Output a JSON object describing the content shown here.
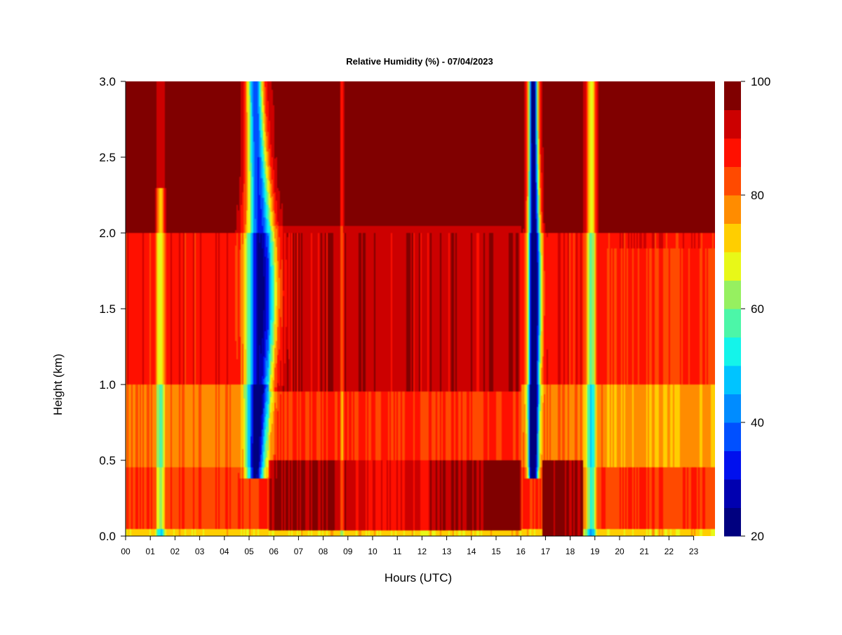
{
  "chart_data": {
    "type": "heatmap",
    "title": "Relative Humidity (%) - 07/04/2023",
    "xlabel": "Hours (UTC)",
    "ylabel": "Height (km)",
    "xlim": [
      0,
      24
    ],
    "ylim": [
      0,
      3.0
    ],
    "x_ticks": [
      "00",
      "01",
      "02",
      "03",
      "04",
      "05",
      "06",
      "07",
      "08",
      "09",
      "10",
      "11",
      "12",
      "13",
      "14",
      "15",
      "16",
      "17",
      "18",
      "19",
      "20",
      "21",
      "22",
      "23"
    ],
    "y_ticks": [
      "0.0",
      "0.5",
      "1.0",
      "1.5",
      "2.0",
      "2.5",
      "3.0"
    ],
    "colorbar": {
      "range": [
        20,
        100
      ],
      "step": 5,
      "tick_labels": [
        "20",
        "40",
        "60",
        "80",
        "100"
      ],
      "levels": [
        {
          "from": 20,
          "to": 25,
          "color": "#00007f"
        },
        {
          "from": 25,
          "to": 30,
          "color": "#0000b0"
        },
        {
          "from": 30,
          "to": 35,
          "color": "#0010ee"
        },
        {
          "from": 35,
          "to": 40,
          "color": "#0050ff"
        },
        {
          "from": 40,
          "to": 45,
          "color": "#008cff"
        },
        {
          "from": 45,
          "to": 50,
          "color": "#00c4ff"
        },
        {
          "from": 50,
          "to": 55,
          "color": "#14f4ea"
        },
        {
          "from": 55,
          "to": 60,
          "color": "#4cf6a8"
        },
        {
          "from": 60,
          "to": 65,
          "color": "#96f060"
        },
        {
          "from": 65,
          "to": 70,
          "color": "#e8f818"
        },
        {
          "from": 70,
          "to": 75,
          "color": "#ffce00"
        },
        {
          "from": 75,
          "to": 80,
          "color": "#ff8c00"
        },
        {
          "from": 80,
          "to": 85,
          "color": "#ff4a00"
        },
        {
          "from": 85,
          "to": 90,
          "color": "#ff1000"
        },
        {
          "from": 90,
          "to": 95,
          "color": "#cc0000"
        },
        {
          "from": 95,
          "to": 100,
          "color": "#800000"
        }
      ]
    },
    "z_description_points": {
      "background_above_2km": 98,
      "layer_1_to_2km": 88,
      "layer_0_5_to_1km": 78,
      "surface_layer": 85,
      "dry_band_05_06_core_min": 32,
      "dry_band_16_17_core_min": 22,
      "moist_band_19_min": 65,
      "moist_band_01_min": 70
    }
  }
}
